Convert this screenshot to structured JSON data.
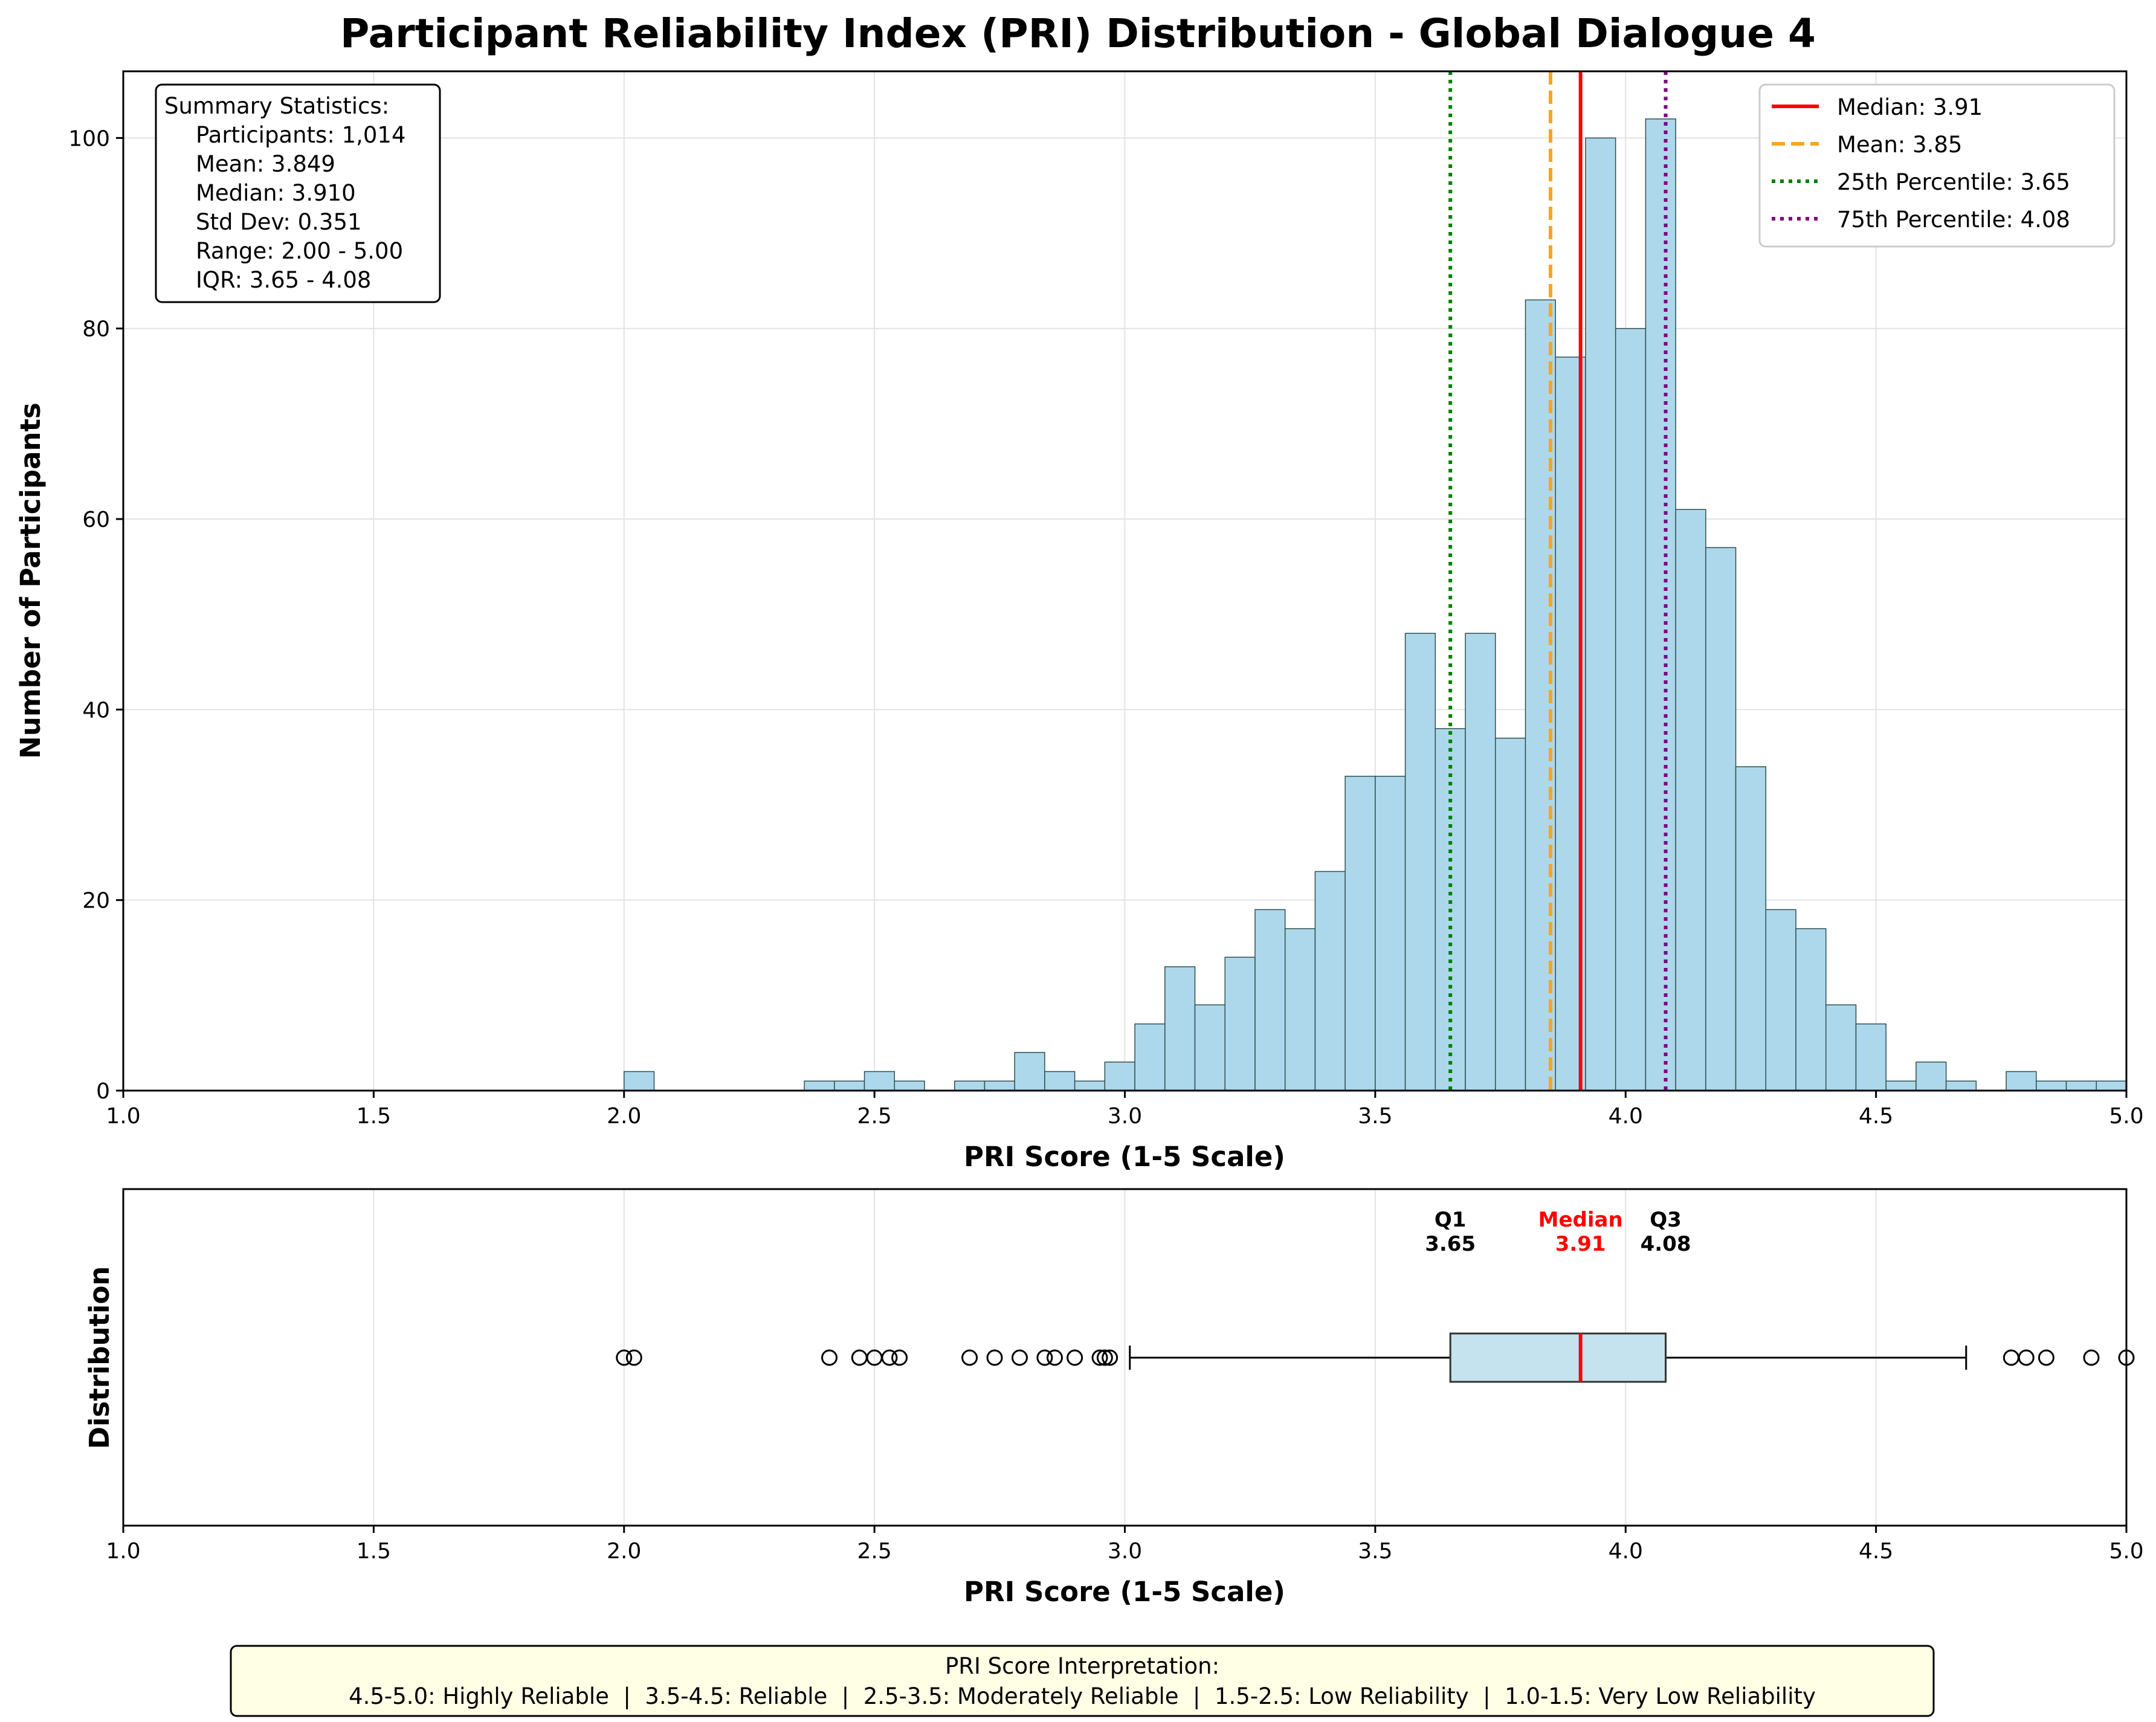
{
  "title": "Participant Reliability Index (PRI) Distribution - Global Dialogue 4",
  "chart_data": [
    {
      "type": "histogram",
      "xlabel": "PRI Score (1-5 Scale)",
      "ylabel": "Number of Participants",
      "xlim": [
        1.0,
        5.0
      ],
      "ylim": [
        0,
        107
      ],
      "xticks": [
        "1.0",
        "1.5",
        "2.0",
        "2.5",
        "3.0",
        "3.5",
        "4.0",
        "4.5",
        "5.0"
      ],
      "yticks": [
        "0",
        "20",
        "40",
        "60",
        "80",
        "100"
      ],
      "grid": true,
      "bin_width": 0.06,
      "bins": [
        {
          "x0": 2.0,
          "count": 2
        },
        {
          "x0": 2.36,
          "count": 1
        },
        {
          "x0": 2.42,
          "count": 1
        },
        {
          "x0": 2.48,
          "count": 2
        },
        {
          "x0": 2.54,
          "count": 1
        },
        {
          "x0": 2.66,
          "count": 1
        },
        {
          "x0": 2.72,
          "count": 1
        },
        {
          "x0": 2.78,
          "count": 4
        },
        {
          "x0": 2.84,
          "count": 2
        },
        {
          "x0": 2.9,
          "count": 1
        },
        {
          "x0": 2.96,
          "count": 3
        },
        {
          "x0": 3.02,
          "count": 7
        },
        {
          "x0": 3.08,
          "count": 13
        },
        {
          "x0": 3.14,
          "count": 9
        },
        {
          "x0": 3.2,
          "count": 14
        },
        {
          "x0": 3.26,
          "count": 19
        },
        {
          "x0": 3.32,
          "count": 17
        },
        {
          "x0": 3.38,
          "count": 23
        },
        {
          "x0": 3.44,
          "count": 33
        },
        {
          "x0": 3.5,
          "count": 33
        },
        {
          "x0": 3.56,
          "count": 48
        },
        {
          "x0": 3.62,
          "count": 38
        },
        {
          "x0": 3.68,
          "count": 48
        },
        {
          "x0": 3.74,
          "count": 37
        },
        {
          "x0": 3.8,
          "count": 83
        },
        {
          "x0": 3.86,
          "count": 77
        },
        {
          "x0": 3.92,
          "count": 100
        },
        {
          "x0": 3.98,
          "count": 80
        },
        {
          "x0": 4.04,
          "count": 102
        },
        {
          "x0": 4.1,
          "count": 61
        },
        {
          "x0": 4.16,
          "count": 57
        },
        {
          "x0": 4.22,
          "count": 34
        },
        {
          "x0": 4.28,
          "count": 19
        },
        {
          "x0": 4.34,
          "count": 17
        },
        {
          "x0": 4.4,
          "count": 9
        },
        {
          "x0": 4.46,
          "count": 7
        },
        {
          "x0": 4.52,
          "count": 1
        },
        {
          "x0": 4.58,
          "count": 3
        },
        {
          "x0": 4.64,
          "count": 1
        },
        {
          "x0": 4.76,
          "count": 2
        },
        {
          "x0": 4.82,
          "count": 1
        },
        {
          "x0": 4.88,
          "count": 1
        },
        {
          "x0": 4.94,
          "count": 1
        }
      ],
      "reference_lines": [
        {
          "name": "Median: 3.91",
          "x": 3.91,
          "color": "#ff0000",
          "style": "solid"
        },
        {
          "name": "Mean: 3.85",
          "x": 3.85,
          "color": "#f5a623",
          "style": "dashed"
        },
        {
          "name": "25th Percentile: 3.65",
          "x": 3.65,
          "color": "#008000",
          "style": "dotted"
        },
        {
          "name": "75th Percentile: 4.08",
          "x": 4.08,
          "color": "#800080",
          "style": "dotted"
        }
      ],
      "legend_position": "top-right",
      "colors": {
        "bar_fill": "#add8ec",
        "bar_edge": "#2f4f4f"
      }
    },
    {
      "type": "boxplot",
      "xlabel": "PRI Score (1-5 Scale)",
      "ylabel": "Distribution",
      "xlim": [
        1.0,
        5.0
      ],
      "xticks": [
        "1.0",
        "1.5",
        "2.0",
        "2.5",
        "3.0",
        "3.5",
        "4.0",
        "4.5",
        "5.0"
      ],
      "q1": 3.65,
      "median": 3.91,
      "q3": 4.08,
      "whisker_low": 3.01,
      "whisker_high": 4.68,
      "outliers": [
        2.0,
        2.02,
        2.41,
        2.47,
        2.5,
        2.53,
        2.55,
        2.69,
        2.74,
        2.79,
        2.84,
        2.86,
        2.9,
        2.95,
        2.96,
        2.97,
        4.77,
        4.8,
        4.84,
        4.93,
        5.0
      ],
      "annotations": {
        "q1": {
          "label": "Q1",
          "value": "3.65"
        },
        "median": {
          "label": "Median",
          "value": "3.91"
        },
        "q3": {
          "label": "Q3",
          "value": "4.08"
        }
      },
      "colors": {
        "box_fill": "#c5e3ee",
        "median": "#ff0000"
      }
    }
  ],
  "summary_box": {
    "title": "Summary Statistics:",
    "lines": [
      "Participants: 1,014",
      "Mean: 3.849",
      "Median: 3.910",
      "Std Dev: 0.351",
      "Range: 2.00 - 5.00",
      "IQR: 3.65 - 4.08"
    ]
  },
  "interpretation": {
    "title": "PRI Score Interpretation:",
    "text": "4.5-5.0: Highly Reliable  |  3.5-4.5: Reliable  |  2.5-3.5: Moderately Reliable  |  1.5-2.5: Low Reliability  |  1.0-1.5: Very Low Reliability"
  }
}
